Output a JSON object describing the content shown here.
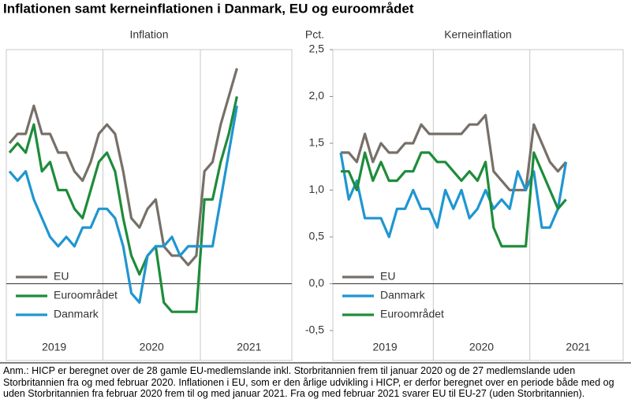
{
  "title": "Inflationen samt kerneinflationen i Danmark, EU og euroområdet",
  "chart_data": [
    {
      "type": "line",
      "title": "Inflation",
      "categories": [
        null,
        null,
        null,
        null,
        null,
        null,
        null,
        null,
        null,
        null,
        null,
        null,
        null,
        null,
        null,
        null,
        null,
        null,
        null,
        null,
        null,
        null,
        null,
        null,
        null,
        null,
        null,
        null,
        null
      ],
      "x_group_labels": [
        "2019",
        "2020",
        "2021"
      ],
      "ylim": [
        -0.5,
        2.5
      ],
      "series": [
        {
          "name": "EU",
          "color": "#777068",
          "values": [
            1.5,
            1.6,
            1.6,
            1.9,
            1.6,
            1.6,
            1.4,
            1.4,
            1.2,
            1.1,
            1.3,
            1.6,
            1.7,
            1.6,
            1.2,
            0.7,
            0.6,
            0.8,
            0.9,
            0.4,
            0.3,
            0.3,
            0.2,
            0.3,
            1.2,
            1.3,
            1.7,
            2.0,
            2.3
          ]
        },
        {
          "name": "Euroområdet",
          "color": "#1e8c3a",
          "values": [
            1.4,
            1.5,
            1.4,
            1.7,
            1.2,
            1.3,
            1.0,
            1.0,
            0.8,
            0.7,
            1.0,
            1.3,
            1.4,
            1.2,
            0.7,
            0.3,
            0.1,
            0.3,
            0.4,
            -0.2,
            -0.3,
            -0.3,
            -0.3,
            -0.3,
            0.9,
            0.9,
            1.3,
            1.6,
            2.0
          ]
        },
        {
          "name": "Danmark",
          "color": "#1f96d0",
          "values": [
            1.2,
            1.1,
            1.2,
            0.9,
            0.7,
            0.5,
            0.4,
            0.5,
            0.4,
            0.6,
            0.6,
            0.8,
            0.8,
            0.7,
            0.4,
            -0.1,
            -0.2,
            0.3,
            0.4,
            0.4,
            0.5,
            0.3,
            0.4,
            0.4,
            0.4,
            0.4,
            0.9,
            1.4,
            1.9
          ]
        }
      ]
    },
    {
      "type": "line",
      "title": "Kerneinflation",
      "ylabel": "Pct.",
      "categories": [
        null,
        null,
        null,
        null,
        null,
        null,
        null,
        null,
        null,
        null,
        null,
        null,
        null,
        null,
        null,
        null,
        null,
        null,
        null,
        null,
        null,
        null,
        null,
        null,
        null,
        null,
        null,
        null,
        null
      ],
      "x_group_labels": [
        "2019",
        "2020",
        "2021"
      ],
      "ylim": [
        -0.5,
        2.5
      ],
      "yticks": [
        {
          "value": 2.5,
          "label": "2,5"
        },
        {
          "value": 2.0,
          "label": "2,0"
        },
        {
          "value": 1.5,
          "label": "1,5"
        },
        {
          "value": 1.0,
          "label": "1,0"
        },
        {
          "value": 0.5,
          "label": "0,5"
        },
        {
          "value": 0.0,
          "label": "0,0"
        },
        {
          "value": -0.5,
          "label": "-0,5"
        }
      ],
      "series": [
        {
          "name": "EU",
          "color": "#777068",
          "values": [
            1.4,
            1.4,
            1.3,
            1.6,
            1.3,
            1.5,
            1.4,
            1.4,
            1.5,
            1.5,
            1.7,
            1.6,
            1.6,
            1.6,
            1.6,
            1.6,
            1.7,
            1.7,
            1.8,
            1.2,
            1.1,
            1.0,
            1.0,
            1.0,
            1.7,
            1.5,
            1.3,
            1.2,
            1.3
          ]
        },
        {
          "name": "Danmark",
          "color": "#1f96d0",
          "values": [
            1.4,
            0.9,
            1.1,
            0.7,
            0.7,
            0.7,
            0.5,
            0.8,
            0.8,
            1.0,
            0.8,
            0.8,
            0.6,
            1.0,
            0.8,
            1.0,
            0.7,
            0.8,
            1.0,
            0.8,
            0.9,
            0.8,
            1.2,
            1.0,
            1.2,
            0.6,
            0.6,
            0.8,
            1.3
          ]
        },
        {
          "name": "Euroområdet",
          "color": "#1e8c3a",
          "values": [
            1.2,
            1.2,
            1.0,
            1.4,
            1.1,
            1.3,
            1.1,
            1.1,
            1.2,
            1.2,
            1.4,
            1.4,
            1.3,
            1.3,
            1.2,
            1.1,
            1.2,
            1.1,
            1.3,
            0.6,
            0.4,
            0.4,
            0.4,
            0.4,
            1.4,
            1.2,
            1.0,
            0.8,
            0.9
          ]
        }
      ]
    }
  ],
  "note": "Anm.: HICP er beregnet over de 28 gamle EU-medlemslande inkl. Storbritannien frem til januar 2020 og de 27 medlemslande uden Storbritannien fra og med februar 2020. Inflationen i EU, som er den årlige udvikling i HICP, er derfor beregnet over en periode både med og uden Storbritannien fra februar 2020 frem til og med januar 2021. Fra og med februar 2021 svarer EU til EU-27 (uden Storbritannien)."
}
